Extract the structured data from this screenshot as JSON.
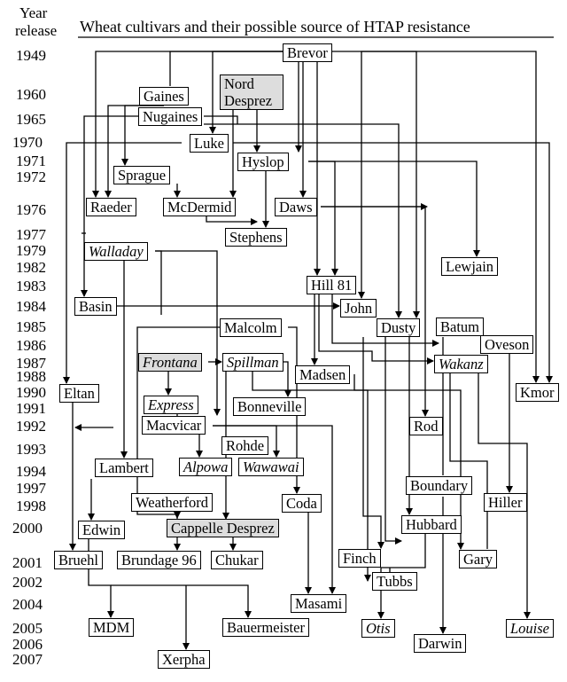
{
  "header": {
    "year_label": "Year",
    "release_label": "release",
    "title": "Wheat cultivars and their possible source of HTAP resistance"
  },
  "years": [
    "1949",
    "1960",
    "1965",
    "1970",
    "1971",
    "1972",
    "1976",
    "1977",
    "1979",
    "1982",
    "1983",
    "1984",
    "1985",
    "1986",
    "1987",
    "1988",
    "1990",
    "1991",
    "1992",
    "1993",
    "1994",
    "1997",
    "1998",
    "2000",
    "2001",
    "2002",
    "2004",
    "2005",
    "2006",
    "2007"
  ],
  "cultivars": {
    "brevor": "Brevor",
    "gaines": "Gaines",
    "nord_desprez": "Nord Desprez",
    "nugaines": "Nugaines",
    "luke": "Luke",
    "hyslop": "Hyslop",
    "sprague": "Sprague",
    "raeder": "Raeder",
    "mcdermid": "McDermid",
    "daws": "Daws",
    "stephens": "Stephens",
    "walladay": "Walladay",
    "lewjain": "Lewjain",
    "hill81": "Hill 81",
    "basin": "Basin",
    "john": "John",
    "malcolm": "Malcolm",
    "dusty": "Dusty",
    "batum": "Batum",
    "oveson": "Oveson",
    "frontana": "Frontana",
    "spillman": "Spillman",
    "madsen": "Madsen",
    "wakanz": "Wakanz",
    "eltan": "Eltan",
    "kmor": "Kmor",
    "express": "Express",
    "bonneville": "Bonneville",
    "macvicar": "Macvicar",
    "rod": "Rod",
    "rohde": "Rohde",
    "lambert": "Lambert",
    "alpowa": "Alpowa",
    "wawawai": "Wawawai",
    "boundary": "Boundary",
    "weatherford": "Weatherford",
    "coda": "Coda",
    "hiller": "Hiller",
    "edwin": "Edwin",
    "cappelle_desprez": "Cappelle Desprez",
    "hubbard": "Hubbard",
    "bruehl": "Bruehl",
    "brundage96": "Brundage 96",
    "chukar": "Chukar",
    "finch": "Finch",
    "gary": "Gary",
    "tubbs": "Tubbs",
    "masami": "Masami",
    "mdm": "MDM",
    "bauermeister": "Bauermeister",
    "otis": "Otis",
    "darwin": "Darwin",
    "louise": "Louise",
    "xerpha": "Xerpha"
  },
  "colors": {
    "source_fill": "#dddddd",
    "line": "#000000"
  }
}
